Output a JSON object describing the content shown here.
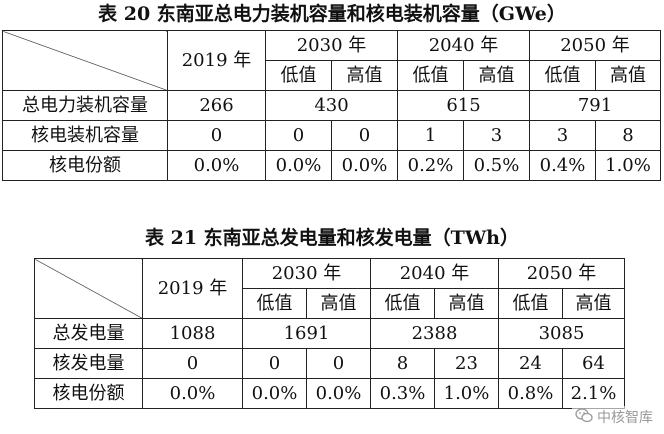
{
  "table1": {
    "caption": "表 20 东南亚总电力装机容量和核电装机容量（GWe）",
    "years": [
      "2019 年",
      "2030 年",
      "2040 年",
      "2050 年"
    ],
    "sub": [
      "低值",
      "高值",
      "低值",
      "高值",
      "低值",
      "高值"
    ],
    "rows": [
      {
        "label": "总电力装机容量",
        "cells": [
          "266",
          "430",
          "615",
          "791"
        ]
      },
      {
        "label": "核电装机容量",
        "cells": [
          "0",
          "0",
          "0",
          "1",
          "3",
          "3",
          "8"
        ]
      },
      {
        "label": "核电份额",
        "cells": [
          "0.0%",
          "0.0%",
          "0.0%",
          "0.2%",
          "0.5%",
          "0.4%",
          "1.0%"
        ]
      }
    ]
  },
  "table2": {
    "caption": "表 21 东南亚总发电量和核发电量（TWh）",
    "years": [
      "2019 年",
      "2030 年",
      "2040 年",
      "2050 年"
    ],
    "sub": [
      "低值",
      "高值",
      "低值",
      "高值",
      "低值",
      "高值"
    ],
    "rows": [
      {
        "label": "总发电量",
        "cells": [
          "1088",
          "1691",
          "2388",
          "3085"
        ]
      },
      {
        "label": "核发电量",
        "cells": [
          "0",
          "0",
          "0",
          "8",
          "23",
          "24",
          "64"
        ]
      },
      {
        "label": "核电份额",
        "cells": [
          "0.0%",
          "0.0%",
          "0.0%",
          "0.3%",
          "1.0%",
          "0.8%",
          "2.1%"
        ]
      }
    ]
  },
  "watermark": {
    "text": "中核智库",
    "icon": "wechat-icon"
  }
}
